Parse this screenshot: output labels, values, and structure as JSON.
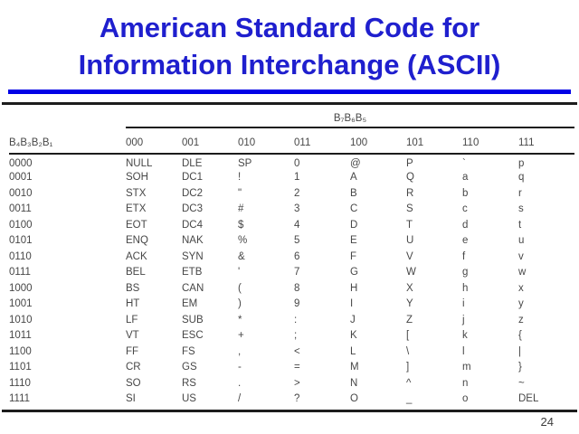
{
  "slide": {
    "title_line1": "American Standard Code for",
    "title_line2": "Information Interchange (ASCII)",
    "page_number": "24",
    "title_color": "#1f1fce",
    "rule_blue_color": "#0101e6",
    "rule_black_color": "#1c1c1c"
  },
  "table": {
    "group_header": "B₇B₆B₅",
    "row_header": "B₄B₃B₂B₁",
    "columns": [
      "000",
      "001",
      "010",
      "011",
      "100",
      "101",
      "110",
      "111"
    ],
    "rows": [
      {
        "bits": "0000",
        "cells": [
          "NULL",
          "DLE",
          "SP",
          "0",
          "@",
          "P",
          "`",
          "p"
        ]
      },
      {
        "bits": "0001",
        "cells": [
          "SOH",
          "DC1",
          "!",
          "1",
          "A",
          "Q",
          "a",
          "q"
        ]
      },
      {
        "bits": "0010",
        "cells": [
          "STX",
          "DC2",
          "\"",
          "2",
          "B",
          "R",
          "b",
          "r"
        ]
      },
      {
        "bits": "0011",
        "cells": [
          "ETX",
          "DC3",
          "#",
          "3",
          "C",
          "S",
          "c",
          "s"
        ]
      },
      {
        "bits": "0100",
        "cells": [
          "EOT",
          "DC4",
          "$",
          "4",
          "D",
          "T",
          "d",
          "t"
        ]
      },
      {
        "bits": "0101",
        "cells": [
          "ENQ",
          "NAK",
          "%",
          "5",
          "E",
          "U",
          "e",
          "u"
        ]
      },
      {
        "bits": "0110",
        "cells": [
          "ACK",
          "SYN",
          "&",
          "6",
          "F",
          "V",
          "f",
          "v"
        ]
      },
      {
        "bits": "0111",
        "cells": [
          "BEL",
          "ETB",
          "'",
          "7",
          "G",
          "W",
          "g",
          "w"
        ]
      },
      {
        "bits": "1000",
        "cells": [
          "BS",
          "CAN",
          "(",
          "8",
          "H",
          "X",
          "h",
          "x"
        ]
      },
      {
        "bits": "1001",
        "cells": [
          "HT",
          "EM",
          ")",
          "9",
          "I",
          "Y",
          "i",
          "y"
        ]
      },
      {
        "bits": "1010",
        "cells": [
          "LF",
          "SUB",
          "*",
          ":",
          "J",
          "Z",
          "j",
          "z"
        ]
      },
      {
        "bits": "1011",
        "cells": [
          "VT",
          "ESC",
          "+",
          ";",
          "K",
          "[",
          "k",
          "{"
        ]
      },
      {
        "bits": "1100",
        "cells": [
          "FF",
          "FS",
          ",",
          "<",
          "L",
          "\\",
          "l",
          "|"
        ]
      },
      {
        "bits": "1101",
        "cells": [
          "CR",
          "GS",
          "-",
          "=",
          "M",
          "]",
          "m",
          "}"
        ]
      },
      {
        "bits": "1110",
        "cells": [
          "SO",
          "RS",
          ".",
          ">",
          "N",
          "^",
          "n",
          "~"
        ]
      },
      {
        "bits": "1111",
        "cells": [
          "SI",
          "US",
          "/",
          "?",
          "O",
          "_",
          "o",
          "DEL"
        ]
      }
    ]
  }
}
